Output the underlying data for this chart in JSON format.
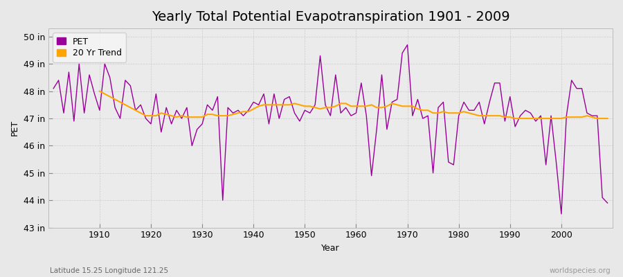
{
  "title": "Yearly Total Potential Evapotranspiration 1901 - 2009",
  "xlabel": "Year",
  "ylabel": "PET",
  "subtitle_left": "Latitude 15.25 Longitude 121.25",
  "subtitle_right": "worldspecies.org",
  "years": [
    1901,
    1902,
    1903,
    1904,
    1905,
    1906,
    1907,
    1908,
    1909,
    1910,
    1911,
    1912,
    1913,
    1914,
    1915,
    1916,
    1917,
    1918,
    1919,
    1920,
    1921,
    1922,
    1923,
    1924,
    1925,
    1926,
    1927,
    1928,
    1929,
    1930,
    1931,
    1932,
    1933,
    1934,
    1935,
    1936,
    1937,
    1938,
    1939,
    1940,
    1941,
    1942,
    1943,
    1944,
    1945,
    1946,
    1947,
    1948,
    1949,
    1950,
    1951,
    1952,
    1953,
    1954,
    1955,
    1956,
    1957,
    1958,
    1959,
    1960,
    1961,
    1962,
    1963,
    1964,
    1965,
    1966,
    1967,
    1968,
    1969,
    1970,
    1971,
    1972,
    1973,
    1974,
    1975,
    1976,
    1977,
    1978,
    1979,
    1980,
    1981,
    1982,
    1983,
    1984,
    1985,
    1986,
    1987,
    1988,
    1989,
    1990,
    1991,
    1992,
    1993,
    1994,
    1995,
    1996,
    1997,
    1998,
    1999,
    2000,
    2001,
    2002,
    2003,
    2004,
    2005,
    2006,
    2007,
    2008,
    2009
  ],
  "pet": [
    48.1,
    48.4,
    47.2,
    48.7,
    46.9,
    49.0,
    47.2,
    48.6,
    47.9,
    47.3,
    49.0,
    48.5,
    47.4,
    47.0,
    48.4,
    48.2,
    47.3,
    47.5,
    47.0,
    46.8,
    47.9,
    46.5,
    47.4,
    46.8,
    47.3,
    47.0,
    47.4,
    46.0,
    46.6,
    46.8,
    47.5,
    47.3,
    47.8,
    44.0,
    47.4,
    47.2,
    47.3,
    47.1,
    47.3,
    47.6,
    47.5,
    47.9,
    46.8,
    47.9,
    47.0,
    47.7,
    47.8,
    47.2,
    46.9,
    47.3,
    47.2,
    47.5,
    49.3,
    47.5,
    47.1,
    48.6,
    47.2,
    47.4,
    47.1,
    47.2,
    48.3,
    47.1,
    44.9,
    46.6,
    48.6,
    46.6,
    47.6,
    47.7,
    49.4,
    49.7,
    47.1,
    47.7,
    47.0,
    47.1,
    45.0,
    47.4,
    47.6,
    45.4,
    45.3,
    47.1,
    47.6,
    47.3,
    47.3,
    47.6,
    46.8,
    47.6,
    48.3,
    48.3,
    46.9,
    47.8,
    46.7,
    47.1,
    47.3,
    47.2,
    46.9,
    47.1,
    45.3,
    47.1,
    45.4,
    43.5,
    47.1,
    48.4,
    48.1,
    48.1,
    47.2,
    47.1,
    47.1,
    44.1,
    43.9
  ],
  "trend_years": [
    1910,
    1911,
    1912,
    1913,
    1914,
    1915,
    1916,
    1917,
    1918,
    1919,
    1920,
    1921,
    1922,
    1923,
    1924,
    1925,
    1926,
    1927,
    1928,
    1929,
    1930,
    1931,
    1932,
    1933,
    1934,
    1935,
    1936,
    1937,
    1938,
    1939,
    1940,
    1941,
    1942,
    1943,
    1944,
    1945,
    1946,
    1947,
    1948,
    1949,
    1950,
    1951,
    1952,
    1953,
    1954,
    1955,
    1956,
    1957,
    1958,
    1959,
    1960,
    1961,
    1962,
    1963,
    1964,
    1965,
    1966,
    1967,
    1968,
    1969,
    1970,
    1971,
    1972,
    1973,
    1974,
    1975,
    1976,
    1977,
    1978,
    1979,
    1980,
    1981,
    1982,
    1983,
    1984,
    1985,
    1986,
    1987,
    1988,
    1989,
    1990,
    1991,
    1992,
    1993,
    1994,
    1995,
    1996,
    1997,
    1998,
    1999,
    2000,
    2001,
    2002,
    2003,
    2004,
    2005,
    2006,
    2007,
    2008,
    2009
  ],
  "trend": [
    48.0,
    47.9,
    47.8,
    47.7,
    47.6,
    47.5,
    47.4,
    47.3,
    47.2,
    47.1,
    47.1,
    47.1,
    47.2,
    47.15,
    47.1,
    47.05,
    47.1,
    47.05,
    47.05,
    47.05,
    47.05,
    47.15,
    47.15,
    47.1,
    47.1,
    47.1,
    47.15,
    47.2,
    47.25,
    47.25,
    47.35,
    47.45,
    47.5,
    47.5,
    47.5,
    47.5,
    47.5,
    47.5,
    47.55,
    47.5,
    47.45,
    47.45,
    47.4,
    47.35,
    47.4,
    47.4,
    47.45,
    47.55,
    47.55,
    47.45,
    47.45,
    47.45,
    47.45,
    47.5,
    47.4,
    47.4,
    47.45,
    47.55,
    47.5,
    47.45,
    47.45,
    47.45,
    47.35,
    47.3,
    47.3,
    47.2,
    47.2,
    47.25,
    47.2,
    47.2,
    47.2,
    47.25,
    47.2,
    47.15,
    47.1,
    47.1,
    47.1,
    47.1,
    47.1,
    47.05,
    47.05,
    47.0,
    47.0,
    47.0,
    47.0,
    47.0,
    47.0,
    47.0,
    47.0,
    47.0,
    47.0,
    47.05,
    47.05,
    47.05,
    47.05,
    47.1,
    47.05,
    47.0,
    47.0,
    47.0
  ],
  "pet_color": "#990099",
  "trend_color": "#FFA500",
  "fig_bg_color": "#e8e8e8",
  "plot_bg_color": "#ebebeb",
  "ylim_min": 43.0,
  "ylim_max": 50.3,
  "yticks": [
    43,
    44,
    45,
    46,
    47,
    48,
    49,
    50
  ],
  "ytick_labels": [
    "43 in",
    "44 in",
    "45 in",
    "46 in",
    "47 in",
    "48 in",
    "49 in",
    "50 in"
  ],
  "xticks": [
    1910,
    1920,
    1930,
    1940,
    1950,
    1960,
    1970,
    1980,
    1990,
    2000
  ],
  "xlim_min": 1900,
  "xlim_max": 2010,
  "title_fontsize": 14,
  "axis_fontsize": 9,
  "tick_fontsize": 9,
  "legend_fontsize": 9,
  "pet_linewidth": 1.0,
  "trend_linewidth": 1.5
}
